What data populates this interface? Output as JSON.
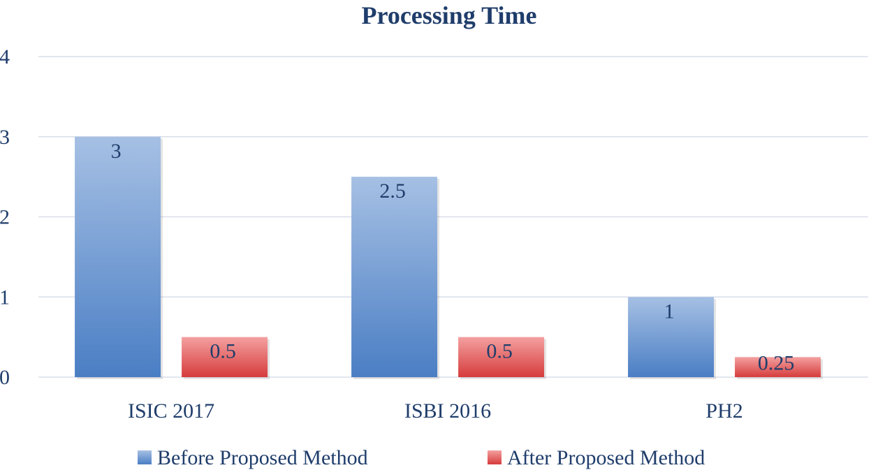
{
  "chart_data": {
    "type": "bar",
    "title": "Processing Time",
    "xlabel": "",
    "ylabel": "",
    "categories": [
      "ISIC 2017",
      "ISBI 2016",
      "PH2"
    ],
    "series": [
      {
        "name": "Before Proposed Method",
        "values": [
          3,
          2.5,
          1
        ],
        "value_labels": [
          "3",
          "2.5",
          "1"
        ],
        "color": "#4a7ec4",
        "color_light": "#a6c0e4"
      },
      {
        "name": "After Proposed Method",
        "values": [
          0.5,
          0.5,
          0.25
        ],
        "value_labels": [
          "0.5",
          "0.5",
          "0.25"
        ],
        "color": "#d63c3c",
        "color_light": "#f4a0a0"
      }
    ],
    "ylim": [
      0,
      4
    ],
    "yticks": [
      0,
      1,
      2,
      3,
      4
    ],
    "ytick_labels": [
      "0",
      "1",
      "2",
      "3",
      "4"
    ],
    "grid": true,
    "legend_position": "bottom",
    "title_color": "#1f3d6b",
    "text_color": "#1f3d6b",
    "grid_color": "#d9dee8"
  }
}
